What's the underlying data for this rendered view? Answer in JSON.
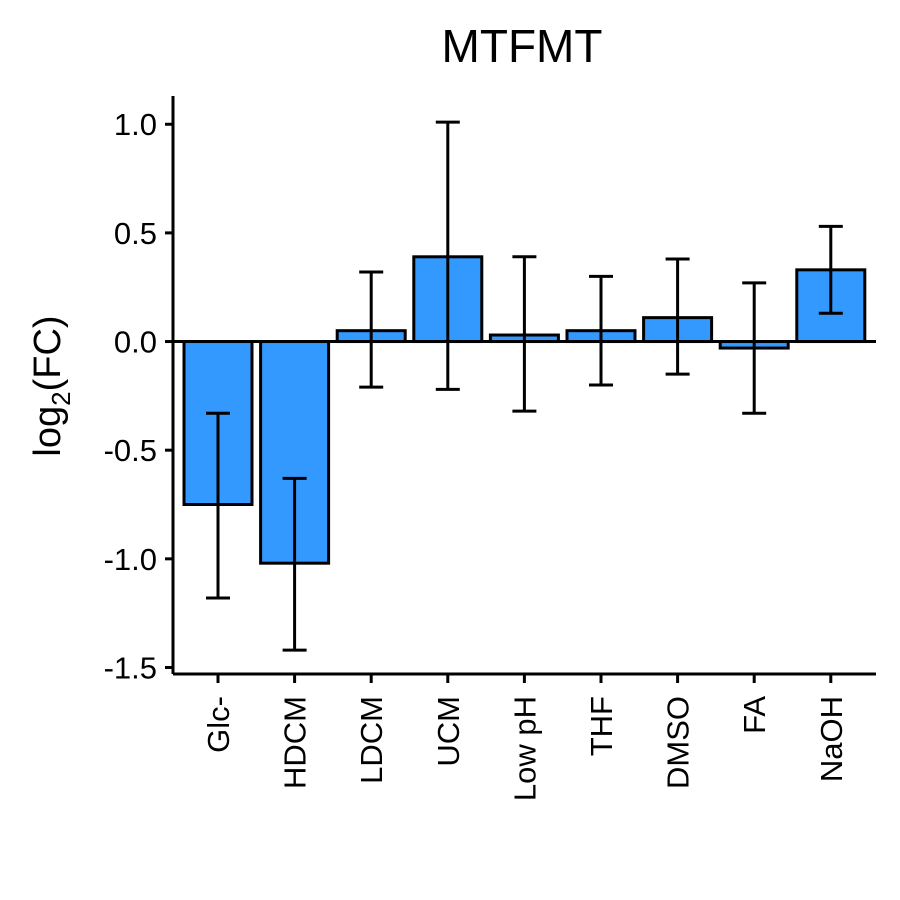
{
  "chart_data": {
    "type": "bar",
    "title": "MTFMT",
    "ylabel": {
      "main": "log",
      "sub": "2",
      "rest": "(FC)"
    },
    "xlabel": "",
    "categories": [
      "Glc-",
      "HDCM",
      "LDCM",
      "UCM",
      "Low pH",
      "THF",
      "DMSO",
      "FA",
      "NaOH"
    ],
    "values": [
      -0.75,
      -1.02,
      0.05,
      0.39,
      0.03,
      0.05,
      0.11,
      -0.03,
      0.33
    ],
    "error_low": [
      -1.18,
      -1.42,
      -0.21,
      -0.22,
      -0.32,
      -0.2,
      -0.15,
      -0.33,
      0.13
    ],
    "error_high": [
      -0.33,
      -0.63,
      0.32,
      1.01,
      0.39,
      0.3,
      0.38,
      0.27,
      0.53
    ],
    "yticks": [
      "1.0",
      "0.5",
      "0.0",
      "-0.5",
      "-1.0",
      "-1.5"
    ],
    "ytick_values": [
      1.0,
      0.5,
      0.0,
      -0.5,
      -1.0,
      -1.5
    ],
    "ylim": [
      -1.53,
      1.13
    ],
    "bar_color": "#3399FF",
    "grid": false,
    "legend": "none"
  }
}
